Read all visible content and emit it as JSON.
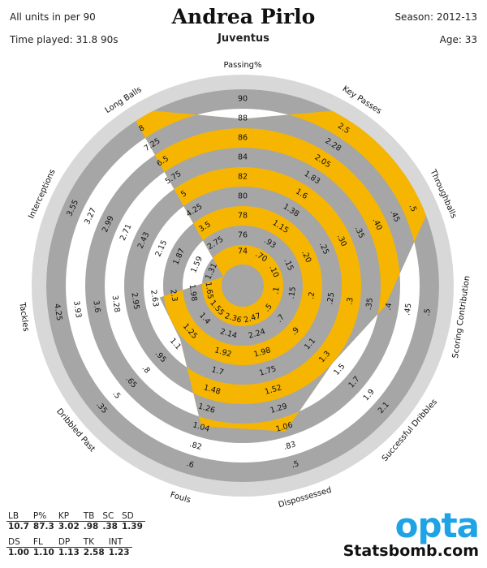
{
  "header": {
    "title": "Andrea Pirlo",
    "team": "Juventus",
    "units_note": "All units in per 90",
    "time_played": "Time played: 31.8 90s",
    "season": "Season: 2012-13",
    "age": "Age: 33"
  },
  "colors": {
    "fill": "#f6b500",
    "ring_gray": "#a6a6a6",
    "ring_light": "#d8d8d8",
    "axis_text": "#111111",
    "opta_blue": "#1ea3e4"
  },
  "chart_data": {
    "type": "radar",
    "title": "Andrea Pirlo",
    "axes": [
      {
        "name": "Passing%",
        "ticks": [
          "74",
          "76",
          "78",
          "80",
          "82",
          "84",
          "86",
          "88",
          "90"
        ],
        "min": 74,
        "max": 90,
        "value": 87.3
      },
      {
        "name": "Key Passes",
        "ticks": [
          ".70",
          ".93",
          "1.15",
          "1.38",
          "1.6",
          "1.83",
          "2.05",
          "2.28",
          "2.5"
        ],
        "min": 0.7,
        "max": 2.5,
        "value": 3.02
      },
      {
        "name": "Throughballs",
        "ticks": [
          ".10",
          ".15",
          ".20",
          ".25",
          ".30",
          ".35",
          ".40",
          ".45",
          ".5"
        ],
        "min": 0.1,
        "max": 0.5,
        "value": 0.98
      },
      {
        "name": "Scoring Contribution",
        "ticks": [
          ".1",
          ".15",
          ".2",
          ".25",
          ".3",
          ".35",
          ".4",
          ".45",
          ".5"
        ],
        "min": 0.1,
        "max": 0.5,
        "value": 0.38
      },
      {
        "name": "Successful Dribbles",
        "ticks": [
          ".5",
          ".7",
          ".9",
          "1.1",
          "1.3",
          "1.5",
          "1.7",
          "1.9",
          "2.1"
        ],
        "min": 0.5,
        "max": 2.1,
        "value": 1.39
      },
      {
        "name": "Dispossessed",
        "ticks": [
          "2.47",
          "2.24",
          "1.98",
          "1.75",
          "1.52",
          "1.29",
          "1.06",
          ".83",
          ".5"
        ],
        "min": 2.47,
        "max": 0.5,
        "value": 1.0
      },
      {
        "name": "Fouls",
        "ticks": [
          "2.36",
          "2.14",
          "1.92",
          "1.7",
          "1.48",
          "1.26",
          "1.04",
          ".82",
          ".6"
        ],
        "min": 2.36,
        "max": 0.6,
        "value": 1.1
      },
      {
        "name": "Dribbled Past",
        "ticks": [
          "1.55",
          "1.4",
          "1.25",
          "1.1",
          ".95",
          ".8",
          ".65",
          ".5",
          ".35"
        ],
        "min": 1.55,
        "max": 0.35,
        "value": 1.13
      },
      {
        "name": "Tackles",
        "ticks": [
          "1.65",
          "1.98",
          "2.3",
          "2.63",
          "2.95",
          "3.28",
          "3.6",
          "3.93",
          "4.25"
        ],
        "min": 1.65,
        "max": 4.25,
        "value": 2.58
      },
      {
        "name": "Interceptions",
        "ticks": [
          "1.31",
          "1.59",
          "1.87",
          "2.15",
          "2.43",
          "2.71",
          "2.99",
          "3.27",
          "3.55"
        ],
        "min": 1.31,
        "max": 3.55,
        "value": 1.23
      },
      {
        "name": "Long Balls",
        "ticks": [
          "2.75",
          "3.5",
          "4.25",
          "5",
          "5.75",
          "6.5",
          "7.25",
          "8"
        ],
        "min": 2,
        "max": 8,
        "value": 10.7
      }
    ],
    "ring_count": 9
  },
  "stats_table": {
    "row1_headers": [
      "LB",
      "P%",
      "KP",
      "TB",
      "SC",
      "SD"
    ],
    "row1_values": [
      "10.7",
      "87.3",
      "3.02",
      ".98",
      ".38",
      "1.39"
    ],
    "row2_headers": [
      "DS",
      "FL",
      "DP",
      "TK",
      "INT"
    ],
    "row2_values": [
      "1.00",
      "1.10",
      "1.13",
      "2.58",
      "1.23"
    ]
  },
  "brand": {
    "opta": "opta",
    "statsbomb": "Statsbomb.com"
  }
}
